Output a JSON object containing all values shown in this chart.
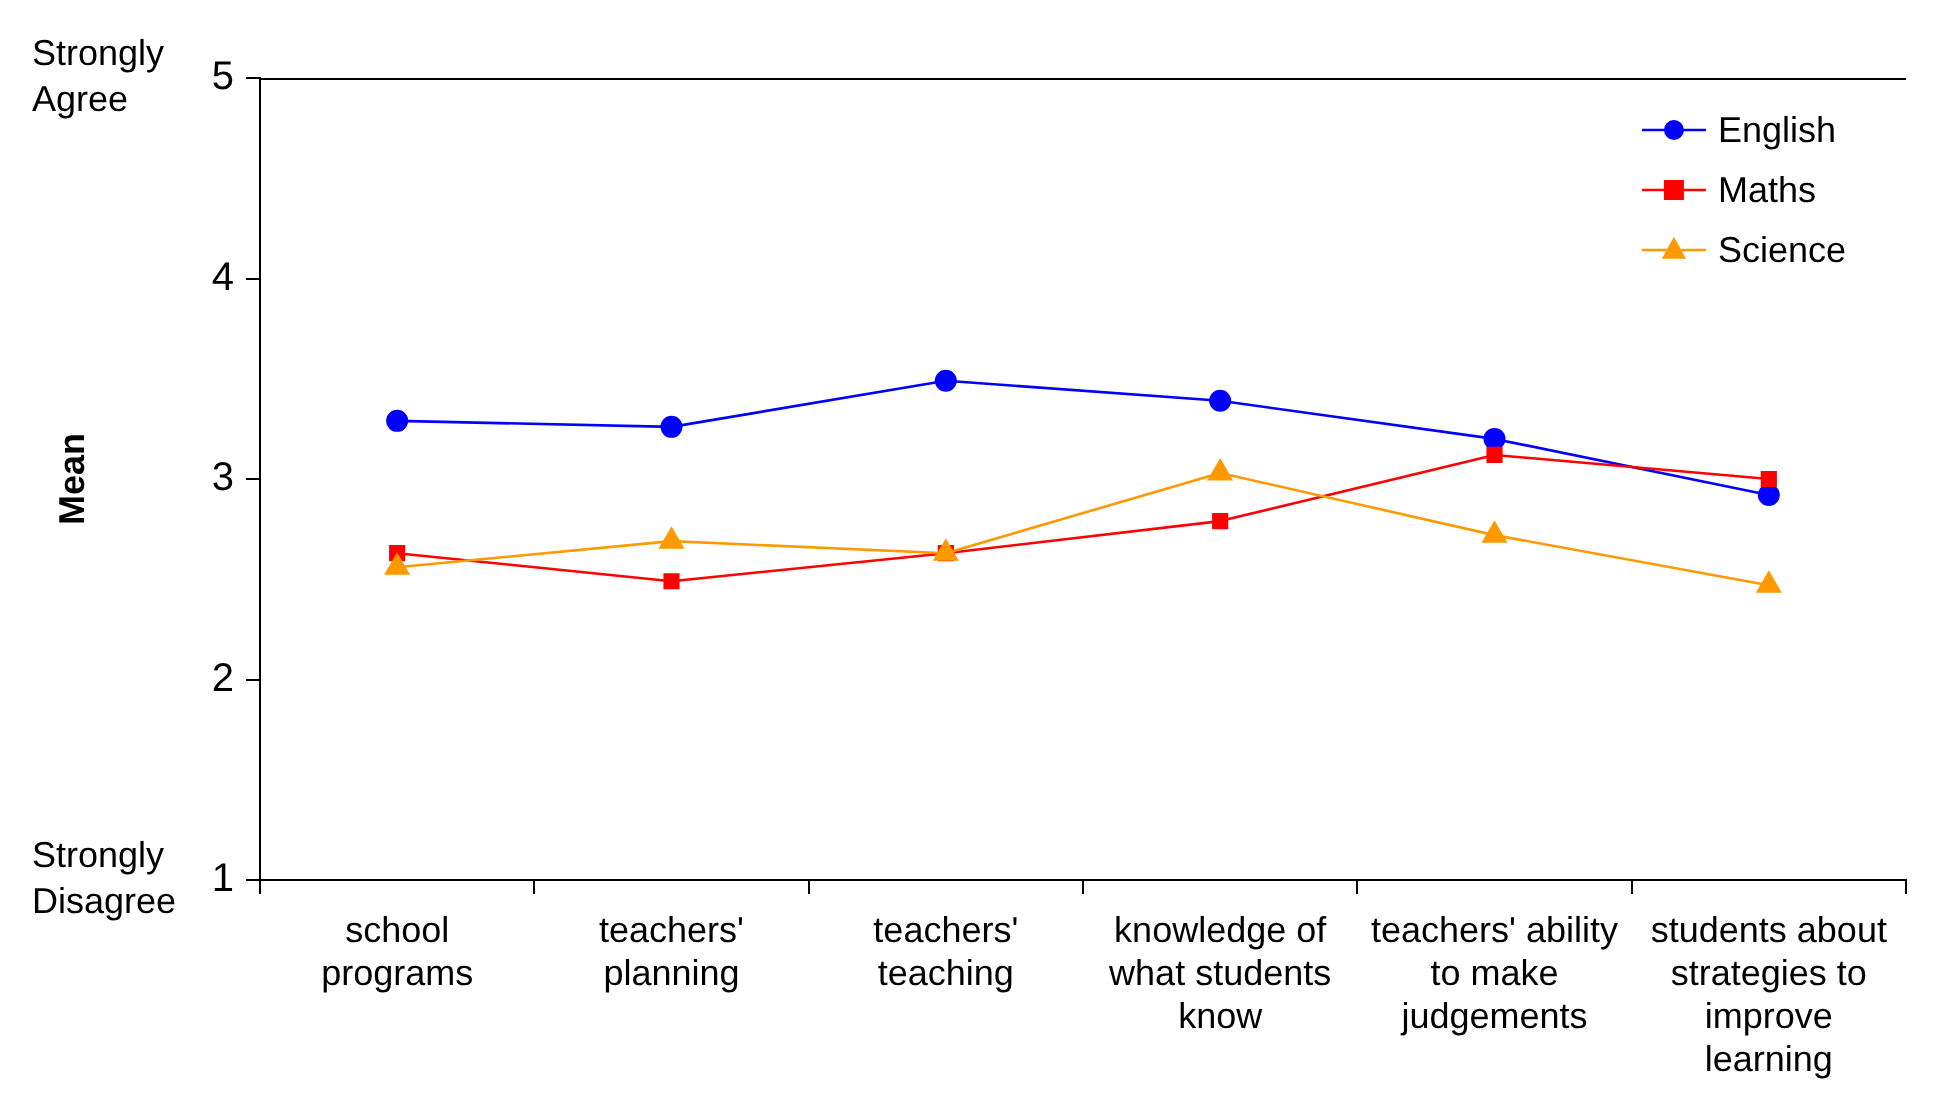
{
  "chart_data": {
    "type": "line",
    "categories": [
      "school programs",
      "teachers' planning",
      "teachers' teaching",
      "knowledge of what students know",
      "teachers' ability to make judgements",
      "students about strategies to improve learning"
    ],
    "series": [
      {
        "name": "English",
        "color": "#0000ff",
        "marker": "circle",
        "values": [
          3.29,
          3.26,
          3.49,
          3.39,
          3.2,
          2.92
        ]
      },
      {
        "name": "Maths",
        "color": "#ff0000",
        "marker": "square",
        "values": [
          2.63,
          2.49,
          2.63,
          2.79,
          3.12,
          3.0
        ]
      },
      {
        "name": "Science",
        "color": "#ff9900",
        "marker": "triangle",
        "values": [
          2.56,
          2.69,
          2.63,
          3.03,
          2.72,
          2.47
        ]
      }
    ],
    "ylabel": "Mean",
    "ylim": [
      1,
      5
    ],
    "yticks": [
      1,
      2,
      3,
      4,
      5
    ],
    "annotations": [
      "Strongly Agree",
      "Strongly Disagree"
    ],
    "legend": "top right"
  }
}
